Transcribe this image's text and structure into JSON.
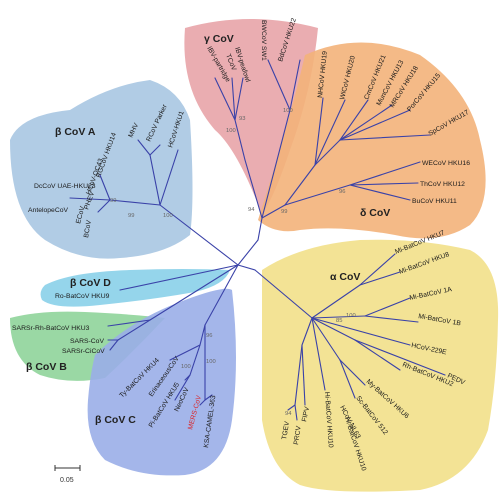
{
  "groups": {
    "gamma": {
      "label": "γ CoV",
      "color": "#e8a4a8"
    },
    "delta": {
      "label": "δ CoV",
      "color": "#f3b27a"
    },
    "alpha": {
      "label": "α CoV",
      "color": "#f2e08a"
    },
    "betaA": {
      "label": "β CoV A",
      "color": "#a9c6e2"
    },
    "betaB": {
      "label": "β CoV B",
      "color": "#8fd49a"
    },
    "betaC": {
      "label": "β CoV C",
      "color": "#9aaee8"
    },
    "betaD": {
      "label": "β CoV D",
      "color": "#8fd3ea"
    }
  },
  "leaves": {
    "ibv_partridge": "IBV-partridge",
    "tcov": "TCoV",
    "ibv_peafowl": "IBV-peafowl",
    "bwcov_sw1": "BWCoV SW1",
    "bdcov_hku22": "BdCoV HKU22",
    "nhcov_hku19": "NHCoV HKU19",
    "wicov_hku20": "WiCoV HKU20",
    "cmcov_hku21": "CmCoV HKU21",
    "muncov_hku13": "MunCoV HKU13",
    "mrcov_hku18": "MRCoV HKU18",
    "porcov_hku15": "PorCoV HKU15",
    "spcov_hku17": "SpCoV HKU17",
    "wecov_hku16": "WECoV HKU16",
    "thcov_hku12": "ThCoV HKU12",
    "bucov_hku11": "BuCoV HKU11",
    "dccov_uae_hku23": "DcCoV UAE-HKU23",
    "hcov_oc43": "HCoV-OC43",
    "rgcov_hku14": "RGCoV HKU14",
    "phev": "PHEV",
    "bcov": "BCoV",
    "ecov": "ECoV",
    "antelopecov": "AntelopeCoV",
    "mhv": "MHV",
    "rcov_parker": "RCoV Parker",
    "hcov_hku1": "HCoV-HKU1",
    "ro_batcov_hku9": "Ro-BatCoV HKU9",
    "sarsr_rh_batcov_hku3": "SARSr-Rh-BatCoV HKU3",
    "sars_cov": "SARS-CoV",
    "sars_civet": "SARSr-CiCoV",
    "ty_batcov_hku4": "Ty-BatCoV HKU4",
    "erinaceous": "ErinaceousCoV",
    "pi_batcov_hku5": "Pi-BatCoV HKU5",
    "neocov": "NeoCoV",
    "mers_cov": "MERS-CoV",
    "ksa_camel": "KSA-CAMEL-363",
    "mi_batcov_hku7": "Mi-BatCoV HKU7",
    "mi_batcov_hku8": "Mi-BatCoV HKU8",
    "mi_batcov_1a": "Mi-BatCoV 1A",
    "mi_batcov_1b": "Mi-BatCoV 1B",
    "hcov_229e": "HCoV-229E",
    "rh_batcov_hku2": "Rh-BatCoV HKU2",
    "pedv": "PEDV",
    "my_batcov_hku6": "My-BatCoV HKU6",
    "sc_batcov_512": "Sc-BatCoV 512",
    "hcov_nl63": "HCoV-NL63",
    "hi_batcov_hku10": "Hi-BatCoV HKU10",
    "hi_batcov_hku10b": "Hi-BatCoV HKU10",
    "tgev": "TGEV",
    "prcv": "PRCV",
    "fipv": "FIPV"
  },
  "bootstraps": {
    "g1": "100",
    "g2": "93",
    "g3": "100",
    "d1": "99",
    "d2": "96",
    "d3": "94",
    "a1": "99",
    "a2": "99",
    "a3": "100",
    "c1": "96",
    "c2": "100",
    "c3": "100",
    "a4": "85",
    "a5": "100",
    "a6": "94"
  },
  "scale_bar": "0.05",
  "highlight_color": "#d9262a"
}
